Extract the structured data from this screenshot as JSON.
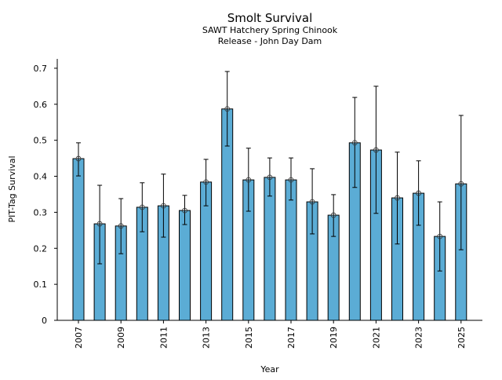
{
  "chart_data": {
    "type": "bar",
    "title": "Smolt Survival",
    "subtitle_lines": [
      "SAWT Hatchery Spring Chinook",
      "Release - John Day Dam"
    ],
    "xlabel": "Year",
    "ylabel": "PIT-Tag Survival",
    "ylim": [
      0,
      0.726
    ],
    "yticks": [
      0,
      0.1,
      0.2,
      0.3,
      0.4,
      0.5,
      0.6,
      0.7
    ],
    "ytick_labels": [
      "0",
      "0.1",
      "0.2",
      "0.3",
      "0.4",
      "0.5",
      "0.6",
      "0.7"
    ],
    "xtick_labels": [
      "2007",
      "2009",
      "2011",
      "2013",
      "2015",
      "2017",
      "2019",
      "2021",
      "2023",
      "2025"
    ],
    "categories": [
      "2007",
      "2008",
      "2009",
      "2010",
      "2011",
      "2012",
      "2013",
      "2014",
      "2015",
      "2016",
      "2017",
      "2018",
      "2019",
      "2020",
      "2021",
      "2022",
      "2023",
      "2024",
      "2025"
    ],
    "values": [
      0.449,
      0.268,
      0.262,
      0.314,
      0.318,
      0.305,
      0.384,
      0.587,
      0.39,
      0.397,
      0.39,
      0.329,
      0.292,
      0.493,
      0.473,
      0.34,
      0.353,
      0.233,
      0.379
    ],
    "upper": [
      0.493,
      0.375,
      0.338,
      0.382,
      0.406,
      0.347,
      0.447,
      0.691,
      0.478,
      0.451,
      0.451,
      0.421,
      0.349,
      0.619,
      0.65,
      0.467,
      0.443,
      0.329,
      0.569
    ],
    "lower": [
      0.401,
      0.157,
      0.185,
      0.246,
      0.231,
      0.266,
      0.318,
      0.484,
      0.303,
      0.345,
      0.334,
      0.24,
      0.233,
      0.369,
      0.297,
      0.212,
      0.264,
      0.137,
      0.196
    ],
    "bar_color": "#5bacd5",
    "edge_color": "#000000",
    "grid": false,
    "legend": "none"
  }
}
